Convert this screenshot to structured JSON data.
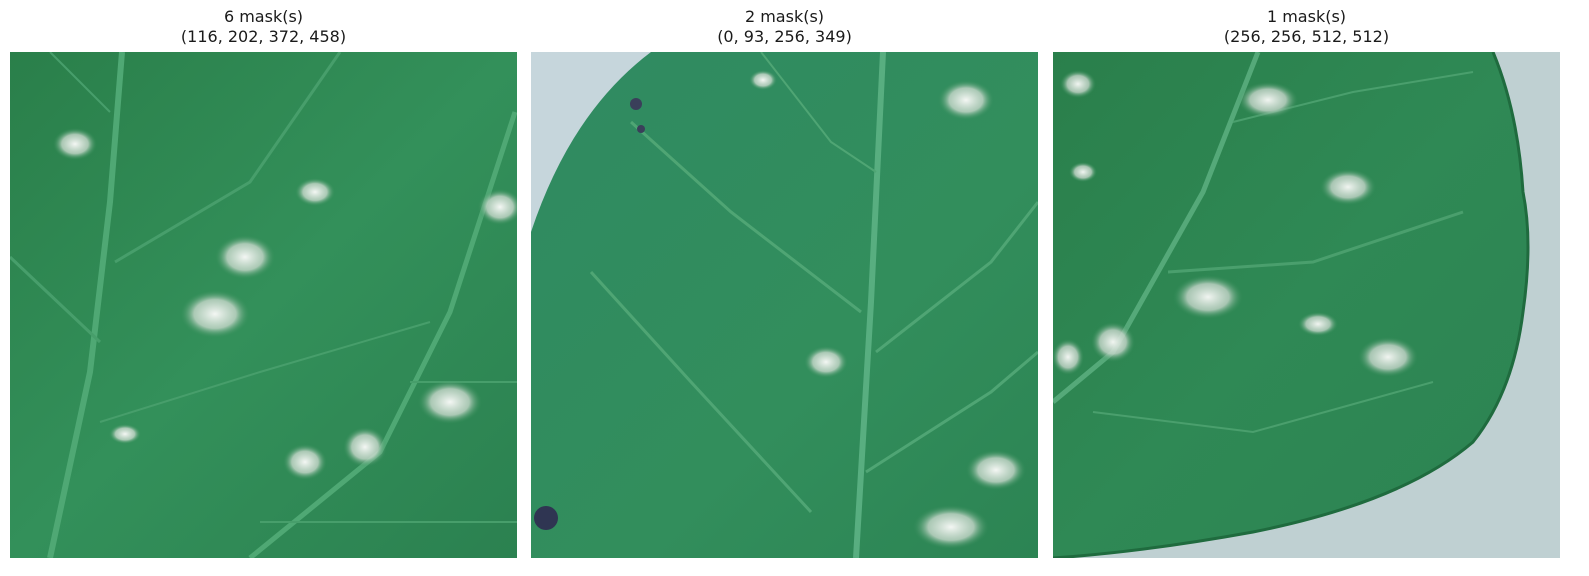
{
  "panels": [
    {
      "title_line1": "6 mask(s)",
      "title_line2": "(116, 202, 372, 458)",
      "image_name": "leaf-crop-with-lesions",
      "colors": {
        "leaf": "#2f8a52",
        "vein": "#4fa874",
        "lesion": "#e6ede8"
      }
    },
    {
      "title_line1": "2 mask(s)",
      "title_line2": "(0, 93, 256, 349)",
      "image_name": "leaf-edge-crop-with-lesions",
      "colors": {
        "leaf": "#2d8456",
        "vein": "#58ae80",
        "background": "#c6d6dc",
        "lesion": "#e8efe9"
      }
    },
    {
      "title_line1": "1 mask(s)",
      "title_line2": "(256, 256, 512, 512)",
      "image_name": "leaf-margin-crop-with-lesions",
      "colors": {
        "leaf": "#2c8352",
        "vein": "#55a979",
        "background": "#bfd0d2",
        "lesion": "#e5ece7"
      }
    }
  ]
}
